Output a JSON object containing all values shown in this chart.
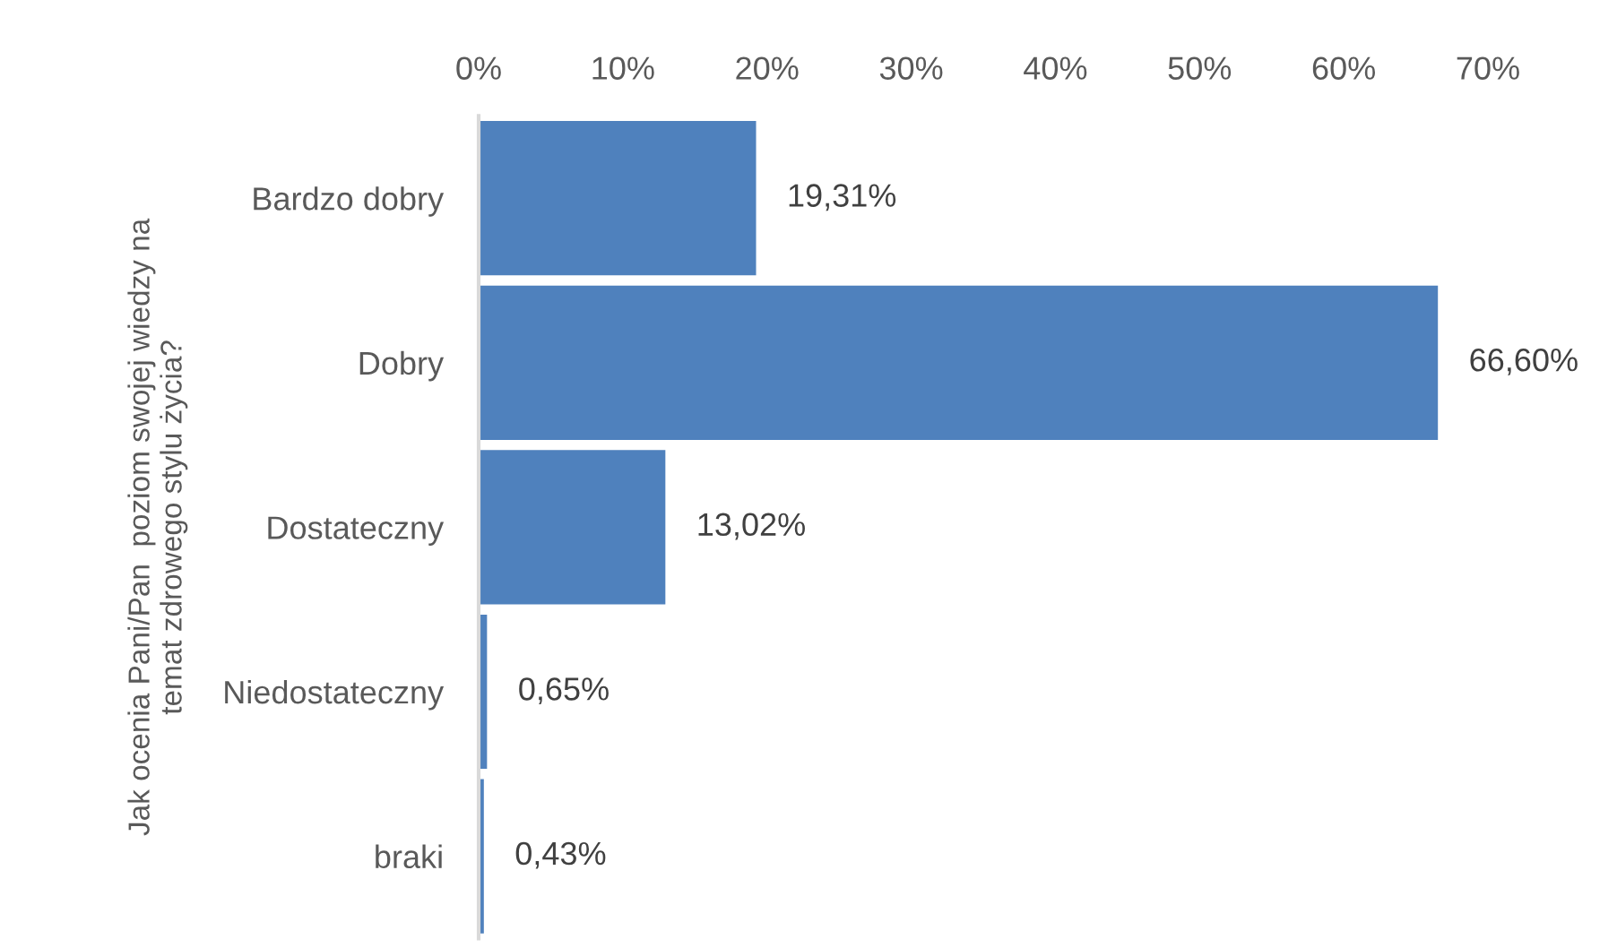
{
  "chart_data": {
    "type": "bar",
    "orientation": "horizontal",
    "ylabel": "Jak ocenia Pani/Pan  poziom swojej wiedzy na\ntemat zdrowego stylu życia?",
    "categories": [
      "Bardzo dobry",
      "Dobry",
      "Dostateczny",
      "Niedostateczny",
      "braki"
    ],
    "values": [
      19.31,
      66.6,
      13.02,
      0.65,
      0.43
    ],
    "value_labels": [
      "19,31%",
      "66,60%",
      "13,02%",
      "0,65%",
      "0,43%"
    ],
    "color": "#4f81bd",
    "xlim": [
      0,
      70
    ],
    "xticks": [
      {
        "value": 0,
        "label": "0%"
      },
      {
        "value": 10,
        "label": "10%"
      },
      {
        "value": 20,
        "label": "20%"
      },
      {
        "value": 30,
        "label": "30%"
      },
      {
        "value": 40,
        "label": "40%"
      },
      {
        "value": 50,
        "label": "50%"
      },
      {
        "value": 60,
        "label": "60%"
      },
      {
        "value": 70,
        "label": "70%"
      }
    ],
    "grid": false,
    "legend": false
  }
}
